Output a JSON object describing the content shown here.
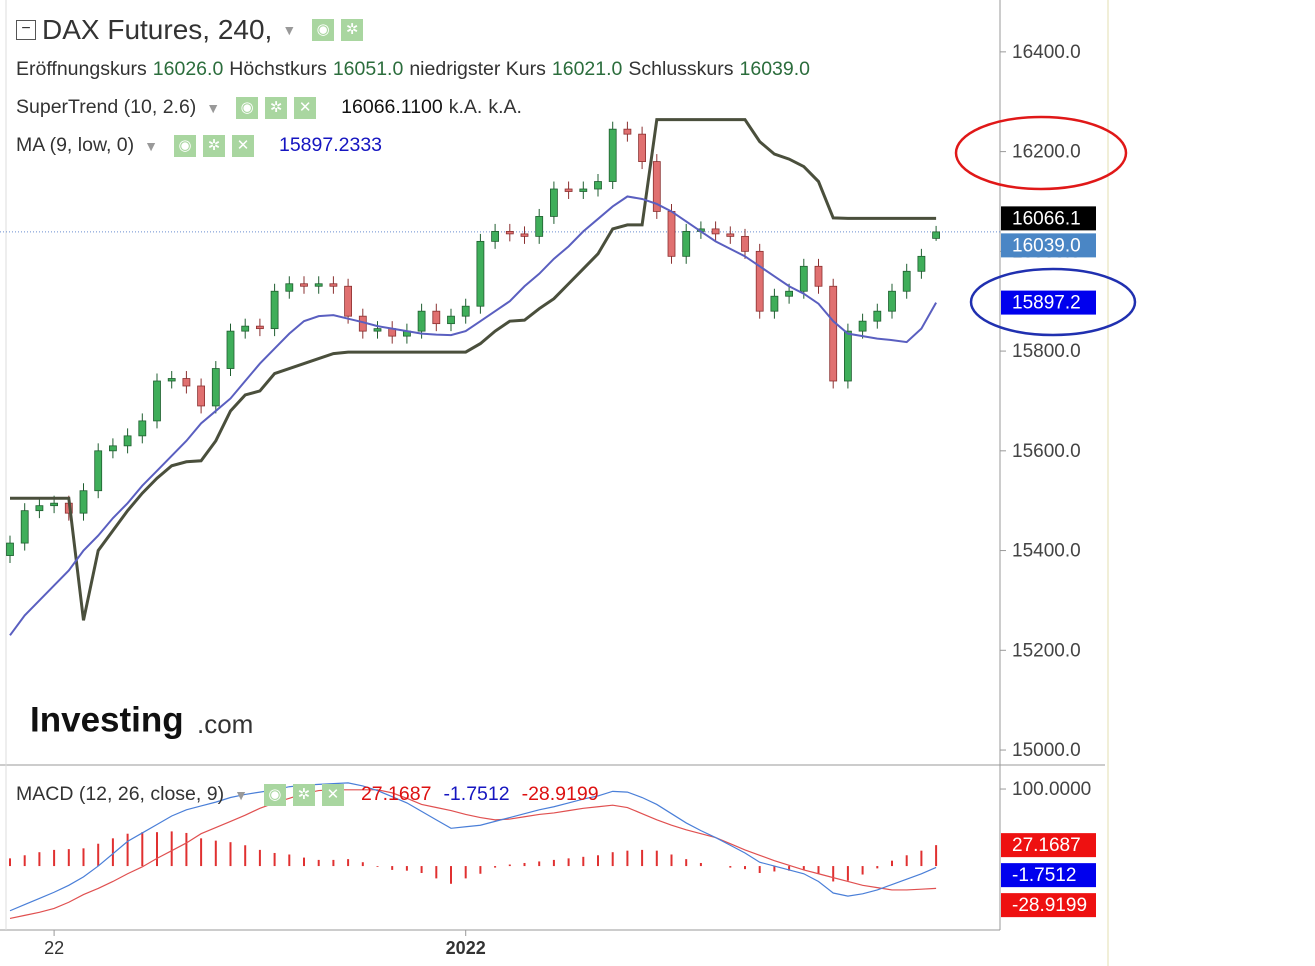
{
  "chart_data": [
    {
      "type": "candlestick",
      "title": "DAX Futures, 240,",
      "x": [
        null,
        null,
        null,
        "22",
        null,
        null,
        null,
        null,
        null,
        null,
        null,
        null,
        null,
        null,
        null,
        null,
        null,
        null,
        null,
        null,
        null,
        null,
        null,
        null,
        null,
        null,
        null,
        null,
        null,
        null,
        null,
        "2022",
        null,
        null,
        null,
        null,
        null,
        null,
        null,
        null,
        null,
        null,
        null,
        null,
        null,
        null,
        null,
        null,
        null,
        null,
        null,
        null,
        null,
        null,
        null,
        null,
        null,
        null,
        null,
        null,
        null,
        null,
        null,
        null
      ],
      "open": [
        15390,
        15415,
        15480,
        15490,
        15495,
        15475,
        15520,
        15600,
        15610,
        15630,
        15660,
        15740,
        15745,
        15730,
        15690,
        15765,
        15840,
        15850,
        15845,
        15920,
        15935,
        15930,
        15935,
        15930,
        15870,
        15840,
        15845,
        15830,
        15840,
        15880,
        15855,
        15870,
        15890,
        16020,
        16040,
        16035,
        16030,
        16070,
        16125,
        16120,
        16125,
        16140,
        16245,
        16235,
        16180,
        16080,
        15990,
        16040,
        16045,
        16035,
        16030,
        16000,
        15880,
        15910,
        15920,
        15970,
        15930,
        15740,
        15840,
        15860,
        15880,
        15920,
        15960,
        16026
      ],
      "high": [
        15430,
        15495,
        15505,
        15510,
        15510,
        15535,
        15615,
        15625,
        15645,
        15675,
        15755,
        15760,
        15760,
        15745,
        15780,
        15855,
        15865,
        15865,
        15935,
        15950,
        15950,
        15950,
        15950,
        15945,
        15885,
        15860,
        15860,
        15855,
        15895,
        15895,
        15885,
        15905,
        16035,
        16055,
        16055,
        16050,
        16085,
        16140,
        16140,
        16140,
        16155,
        16260,
        16260,
        16250,
        16195,
        16095,
        16055,
        16060,
        16060,
        16050,
        16045,
        16015,
        15925,
        15935,
        15985,
        15985,
        15945,
        15855,
        15875,
        15895,
        15935,
        15975,
        16005,
        16051
      ],
      "low": [
        15375,
        15400,
        15465,
        15475,
        15460,
        15460,
        15505,
        15585,
        15595,
        15615,
        15645,
        15725,
        15715,
        15675,
        15675,
        15750,
        15825,
        15830,
        15830,
        15905,
        15915,
        15915,
        15915,
        15855,
        15825,
        15825,
        15815,
        15815,
        15825,
        15840,
        15840,
        15855,
        15875,
        16005,
        16020,
        16015,
        16015,
        16055,
        16105,
        16105,
        16110,
        16125,
        16220,
        16165,
        16065,
        15975,
        15975,
        16025,
        16020,
        16015,
        15985,
        15865,
        15865,
        15895,
        15905,
        15915,
        15725,
        15725,
        15825,
        15845,
        15865,
        15905,
        15945,
        16021
      ],
      "close": [
        15415,
        15480,
        15490,
        15495,
        15475,
        15520,
        15600,
        15610,
        15630,
        15660,
        15740,
        15745,
        15730,
        15690,
        15765,
        15840,
        15850,
        15845,
        15920,
        15935,
        15930,
        15935,
        15930,
        15870,
        15840,
        15845,
        15830,
        15840,
        15880,
        15855,
        15870,
        15890,
        16020,
        16040,
        16035,
        16030,
        16070,
        16125,
        16120,
        16125,
        16140,
        16245,
        16235,
        16180,
        16080,
        15990,
        16040,
        16045,
        16035,
        16030,
        16000,
        15880,
        15910,
        15920,
        15970,
        15930,
        15740,
        15840,
        15860,
        15880,
        15920,
        15960,
        15990,
        16039
      ],
      "up_color": "#3fae5a",
      "down_color": "#e07070",
      "ohlc_legend": [
        {
          "label": "Eröffnungskurs",
          "value_label": "16026.0"
        },
        {
          "label": "Höchstkurs",
          "value_label": "16051.0"
        },
        {
          "label": "niedrigster Kurs",
          "value_label": "16021.0"
        },
        {
          "label": "Schlusskurs",
          "value_label": "16039.0"
        }
      ],
      "close_label": "16039.0",
      "close_label_color": "#4a86c5",
      "series": [
        {
          "name": "SuperTrend (10, 2.6)",
          "color": "#4a4f3c",
          "legend_value": "16066.1100",
          "legend_extra": [
            "k.A.",
            "k.A."
          ],
          "last_label": "16066.1",
          "label_color": "#000000",
          "values": [
            15505,
            15505,
            15505,
            15505,
            15505,
            15260,
            15400,
            15440,
            15480,
            15515,
            15545,
            15570,
            15578,
            15580,
            15620,
            15680,
            15712,
            15720,
            15755,
            15765,
            15775,
            15785,
            15795,
            15798,
            15798,
            15798,
            15798,
            15798,
            15798,
            15798,
            15798,
            15798,
            15815,
            15840,
            15860,
            15862,
            15885,
            15905,
            15935,
            15965,
            15995,
            16045,
            16053,
            16053,
            16264,
            16264,
            16264,
            16264,
            16264,
            16264,
            16264,
            16220,
            16195,
            16185,
            16170,
            16140,
            16067,
            16066.11,
            16066.11,
            16066.11,
            16066.11,
            16066.11,
            16066.11,
            16066.11
          ]
        },
        {
          "name": "MA (9, low, 0)",
          "color": "#5a5fc0",
          "legend_value": "15897.2333",
          "last_label": "15897.2",
          "label_color": "#0000ee",
          "values": [
            15230,
            15270,
            15300,
            15330,
            15360,
            15400,
            15430,
            15465,
            15495,
            15530,
            15560,
            15590,
            15620,
            15655,
            15680,
            15705,
            15740,
            15775,
            15805,
            15835,
            15860,
            15870,
            15872,
            15865,
            15858,
            15850,
            15845,
            15840,
            15835,
            15833,
            15832,
            15840,
            15860,
            15880,
            15900,
            15930,
            15955,
            15985,
            16010,
            16040,
            16065,
            16090,
            16110,
            16105,
            16095,
            16080,
            16060,
            16040,
            16020,
            16005,
            15990,
            15970,
            15950,
            15930,
            15915,
            15895,
            15860,
            15835,
            15830,
            15825,
            15822,
            15818,
            15845,
            15897.2333
          ]
        }
      ],
      "ylim": [
        14970,
        16504
      ],
      "yticks": [
        {
          "value": 15000,
          "label": "15000.0"
        },
        {
          "value": 15200,
          "label": "15200.0"
        },
        {
          "value": 15400,
          "label": "15400.0"
        },
        {
          "value": 15600,
          "label": "15600.0"
        },
        {
          "value": 15800,
          "label": "15800.0"
        },
        {
          "value": 16000,
          "label": "16000.0"
        },
        {
          "value": 16200,
          "label": "16200.0"
        },
        {
          "value": 16400,
          "label": "16400.0"
        }
      ],
      "watermark": [
        "Investing",
        ".com"
      ]
    },
    {
      "type": "macd",
      "title": "MACD (12, 26, close, 9)",
      "histogram": {
        "color": "#e03030",
        "label_color": "#ee1111",
        "values": [
          10,
          14,
          18,
          21,
          22,
          23,
          29,
          36,
          42,
          44,
          44,
          45,
          43,
          36,
          33,
          31,
          27,
          21,
          17,
          15,
          11,
          8,
          8,
          9,
          5,
          -1,
          -5,
          -6,
          -9,
          -16,
          -23,
          -16,
          -10,
          -2,
          2,
          4,
          6,
          8,
          10,
          12,
          14,
          18,
          20,
          21,
          20,
          15,
          9,
          4,
          0,
          -2,
          -4,
          -9,
          -7,
          -6,
          -5,
          -10,
          -20,
          -19,
          -11,
          -3,
          7,
          14,
          20,
          27.1687
        ]
      },
      "macd": {
        "color": "#4a7fd8",
        "label_color": "#0000ee",
        "values": [
          -58,
          -50,
          -42,
          -34,
          -25,
          -14,
          0,
          16,
          32,
          43,
          54,
          65,
          73,
          78,
          83,
          89,
          93,
          96,
          99,
          103,
          105,
          106,
          107,
          108,
          104,
          98,
          90,
          82,
          71,
          60,
          49,
          51,
          53,
          58,
          63,
          68,
          73,
          77,
          82,
          87,
          91,
          97,
          96,
          89,
          80,
          68,
          56,
          46,
          37,
          27,
          17,
          5,
          0,
          -5,
          -10,
          -20,
          -35,
          -39,
          -36,
          -31,
          -24,
          -17,
          -10,
          -1.7512
        ]
      },
      "signal": {
        "color": "#e05050",
        "label_color": "#ee1111",
        "values": [
          -68,
          -64,
          -60,
          -55,
          -47,
          -37,
          -29,
          -20,
          -10,
          -1,
          10,
          20,
          30,
          42,
          50,
          58,
          66,
          75,
          82,
          88,
          94,
          98,
          99,
          99,
          99,
          99,
          95,
          88,
          80,
          76,
          72,
          67,
          63,
          60,
          61,
          64,
          67,
          69,
          72,
          75,
          77,
          79,
          76,
          68,
          60,
          53,
          47,
          42,
          37,
          29,
          21,
          14,
          7,
          1,
          -5,
          -10,
          -15,
          -20,
          -25,
          -28,
          -31,
          -31,
          -30,
          -28.9199
        ]
      },
      "ylim": [
        -83,
        128.6
      ],
      "yticks": [
        {
          "value": 100,
          "label": "100.0000"
        }
      ]
    }
  ]
}
